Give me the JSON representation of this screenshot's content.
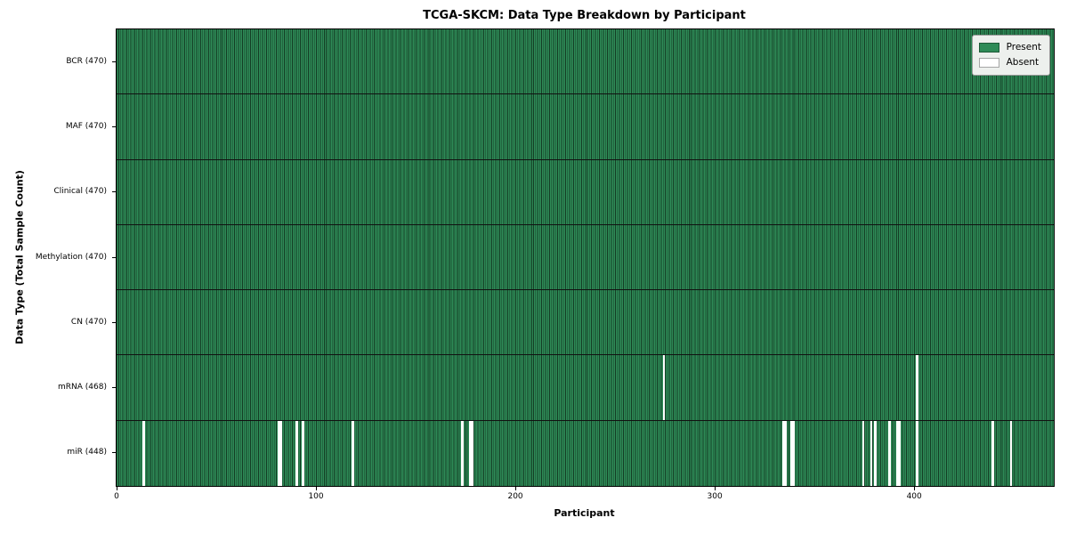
{
  "title": "TCGA-SKCM: Data Type Breakdown by Participant",
  "xlabel": "Participant",
  "ylabel": "Data Type (Total Sample Count)",
  "legend": {
    "present_label": "Present",
    "absent_label": "Absent"
  },
  "colors": {
    "present": "#2e8b57",
    "absent": "#ffffff",
    "cell_edge": "#143c24",
    "row_divider": "#111111",
    "plot_border": "#000000",
    "legend_bg": "#edf0ed",
    "legend_border": "#999999",
    "text": "#000000"
  },
  "chart_data": {
    "type": "heatmap",
    "title": "TCGA-SKCM: Data Type Breakdown by Participant",
    "xlabel": "Participant",
    "ylabel": "Data Type (Total Sample Count)",
    "n_participants": 470,
    "x_ticks": [
      0,
      100,
      200,
      300,
      400
    ],
    "grid": false,
    "legend_position": "upper right",
    "legend": [
      {
        "label": "Present",
        "color": "#2e8b57"
      },
      {
        "label": "Absent",
        "color": "#ffffff"
      }
    ],
    "rows": [
      {
        "label": "BCR (470)",
        "data_type": "BCR",
        "total_samples": 470,
        "absent_participants": []
      },
      {
        "label": "MAF (470)",
        "data_type": "MAF",
        "total_samples": 470,
        "absent_participants": []
      },
      {
        "label": "Clinical (470)",
        "data_type": "Clinical",
        "total_samples": 470,
        "absent_participants": []
      },
      {
        "label": "Methylation (470)",
        "data_type": "Methylation",
        "total_samples": 470,
        "absent_participants": []
      },
      {
        "label": "CN (470)",
        "data_type": "CN",
        "total_samples": 470,
        "absent_participants": []
      },
      {
        "label": "mRNA (468)",
        "data_type": "mRNA",
        "total_samples": 468,
        "absent_participants": [
          274,
          401
        ]
      },
      {
        "label": "miR (448)",
        "data_type": "miR",
        "total_samples": 448,
        "absent_participants": [
          13,
          81,
          82,
          90,
          93,
          118,
          173,
          177,
          178,
          334,
          335,
          338,
          339,
          374,
          378,
          380,
          387,
          391,
          392,
          401,
          439,
          448
        ]
      }
    ]
  }
}
